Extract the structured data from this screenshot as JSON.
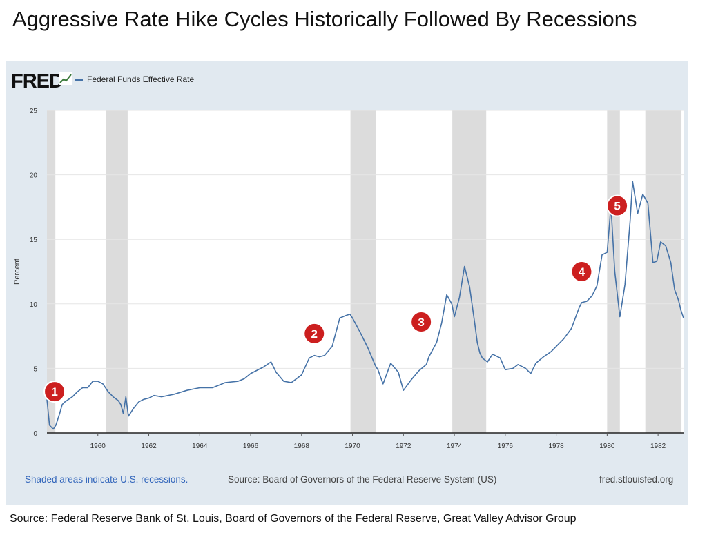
{
  "page": {
    "title": "Aggressive Rate Hike Cycles Historically Followed By Recessions",
    "bottom_source": "Source: Federal Reserve Bank of St. Louis, Board of Governors of the Federal Reserve, Great Valley Advisor Group"
  },
  "fred": {
    "logo": "FRED",
    "recession_note": "Shaded areas indicate U.S. recessions.",
    "source_note": "Source: Board of Governors of the Federal Reserve System (US)",
    "site": "fred.stlouisfed.org"
  },
  "colors": {
    "line": "#4572a7",
    "marker": "#cc1f1f",
    "recession": "#dcdcdc",
    "panel": "#e1e9f0"
  },
  "chart_data": {
    "type": "line",
    "title": "",
    "ylabel": "Percent",
    "xlim": [
      1958.0,
      1983.0
    ],
    "ylim": [
      0,
      25
    ],
    "y_ticks": [
      "0",
      "5",
      "10",
      "15",
      "20",
      "25"
    ],
    "x_ticks": [
      "1960",
      "1962",
      "1964",
      "1966",
      "1968",
      "1970",
      "1972",
      "1974",
      "1976",
      "1978",
      "1980",
      "1982"
    ],
    "grid": true,
    "legend": "top-left",
    "series": [
      {
        "name": "Federal Funds Effective Rate",
        "x": [
          1958.0,
          1958.1,
          1958.25,
          1958.35,
          1958.5,
          1958.6,
          1958.7,
          1958.85,
          1959.0,
          1959.2,
          1959.4,
          1959.6,
          1959.8,
          1960.0,
          1960.2,
          1960.4,
          1960.6,
          1960.8,
          1960.9,
          1961.0,
          1961.1,
          1961.2,
          1961.4,
          1961.6,
          1961.8,
          1962.0,
          1962.2,
          1962.5,
          1963.0,
          1963.5,
          1964.0,
          1964.5,
          1965.0,
          1965.5,
          1965.75,
          1966.0,
          1966.5,
          1966.8,
          1967.0,
          1967.3,
          1967.6,
          1968.0,
          1968.3,
          1968.5,
          1968.7,
          1968.9,
          1969.2,
          1969.5,
          1969.75,
          1969.9,
          1970.0,
          1970.3,
          1970.6,
          1970.9,
          1971.0,
          1971.2,
          1971.5,
          1971.8,
          1972.0,
          1972.3,
          1972.6,
          1972.9,
          1973.0,
          1973.3,
          1973.5,
          1973.7,
          1973.9,
          1974.0,
          1974.2,
          1974.4,
          1974.6,
          1974.8,
          1974.9,
          1975.0,
          1975.1,
          1975.3,
          1975.5,
          1975.8,
          1976.0,
          1976.3,
          1976.5,
          1976.8,
          1977.0,
          1977.2,
          1977.5,
          1977.8,
          1978.0,
          1978.3,
          1978.6,
          1978.9,
          1979.0,
          1979.2,
          1979.4,
          1979.6,
          1979.8,
          1980.0,
          1980.15,
          1980.3,
          1980.5,
          1980.7,
          1980.9,
          1981.0,
          1981.2,
          1981.4,
          1981.6,
          1981.8,
          1981.95,
          1982.1,
          1982.3,
          1982.5,
          1982.65,
          1982.8,
          1982.9,
          1983.0
        ],
        "values": [
          2.6,
          0.6,
          0.3,
          0.6,
          1.5,
          2.2,
          2.4,
          2.6,
          2.8,
          3.2,
          3.5,
          3.5,
          4.0,
          4.0,
          3.8,
          3.2,
          2.8,
          2.5,
          2.2,
          1.5,
          2.8,
          1.3,
          1.9,
          2.4,
          2.6,
          2.7,
          2.9,
          2.8,
          3.0,
          3.3,
          3.5,
          3.5,
          3.9,
          4.0,
          4.2,
          4.6,
          5.1,
          5.5,
          4.7,
          4.0,
          3.9,
          4.5,
          5.8,
          6.0,
          5.9,
          6.0,
          6.7,
          8.9,
          9.1,
          9.2,
          8.9,
          7.8,
          6.6,
          5.2,
          4.9,
          3.8,
          5.4,
          4.7,
          3.3,
          4.1,
          4.8,
          5.3,
          5.9,
          7.0,
          8.5,
          10.7,
          10.0,
          9.0,
          10.5,
          12.9,
          11.3,
          8.5,
          7.0,
          6.2,
          5.8,
          5.5,
          6.1,
          5.8,
          4.9,
          5.0,
          5.3,
          5.0,
          4.6,
          5.4,
          5.9,
          6.3,
          6.7,
          7.3,
          8.1,
          9.7,
          10.1,
          10.2,
          10.6,
          11.4,
          13.8,
          14.0,
          17.6,
          12.5,
          9.0,
          11.5,
          16.4,
          19.5,
          17.0,
          18.5,
          17.8,
          13.2,
          13.3,
          14.8,
          14.5,
          13.2,
          11.1,
          10.3,
          9.5,
          8.9
        ]
      }
    ],
    "recessions": [
      [
        1957.67,
        1958.33
      ],
      [
        1960.33,
        1961.17
      ],
      [
        1969.92,
        1970.92
      ],
      [
        1973.92,
        1975.25
      ],
      [
        1980.0,
        1980.5
      ],
      [
        1981.5,
        1982.92
      ]
    ],
    "annotations": [
      {
        "label": "1",
        "x": 1958.3,
        "y": 3.2
      },
      {
        "label": "2",
        "x": 1968.5,
        "y": 7.7
      },
      {
        "label": "3",
        "x": 1972.7,
        "y": 8.6
      },
      {
        "label": "4",
        "x": 1979.0,
        "y": 12.5
      },
      {
        "label": "5",
        "x": 1980.4,
        "y": 17.6
      }
    ]
  }
}
